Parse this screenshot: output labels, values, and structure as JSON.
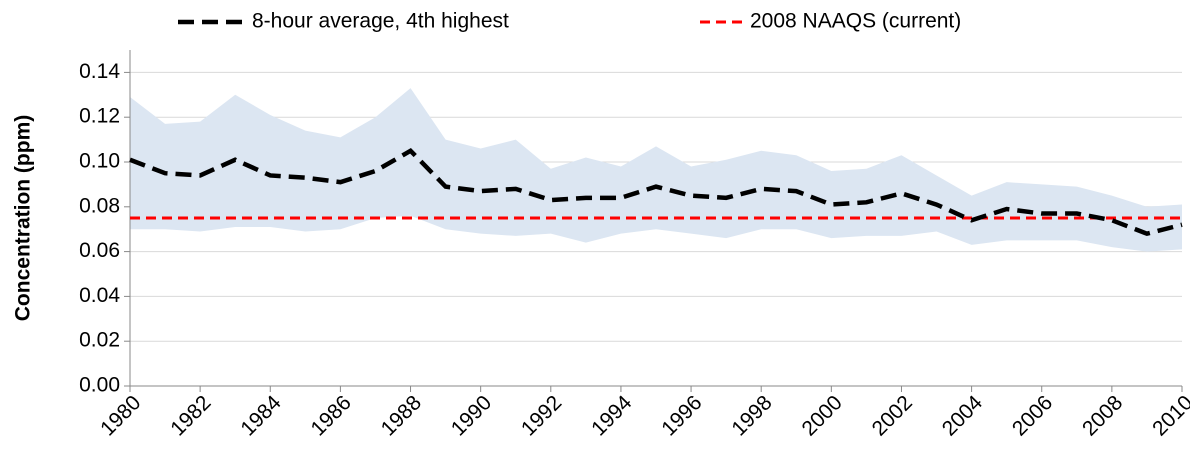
{
  "chart_data": {
    "type": "line",
    "y_label": "Concentration (ppm)",
    "x": [
      1980,
      1981,
      1982,
      1983,
      1984,
      1985,
      1986,
      1987,
      1988,
      1989,
      1990,
      1991,
      1992,
      1993,
      1994,
      1995,
      1996,
      1997,
      1998,
      1999,
      2000,
      2001,
      2002,
      2003,
      2004,
      2005,
      2006,
      2007,
      2008,
      2009,
      2010
    ],
    "series": [
      {
        "name": "8-hour average, 4th highest",
        "color": "#000000",
        "values": [
          0.101,
          0.095,
          0.094,
          0.101,
          0.094,
          0.093,
          0.091,
          0.096,
          0.105,
          0.089,
          0.087,
          0.088,
          0.083,
          0.084,
          0.084,
          0.089,
          0.085,
          0.084,
          0.088,
          0.087,
          0.081,
          0.082,
          0.086,
          0.081,
          0.074,
          0.079,
          0.077,
          0.077,
          0.074,
          0.068,
          0.072
        ]
      }
    ],
    "band": {
      "color": "#dce6f2",
      "upper": [
        0.129,
        0.117,
        0.118,
        0.13,
        0.121,
        0.114,
        0.111,
        0.12,
        0.133,
        0.11,
        0.106,
        0.11,
        0.097,
        0.102,
        0.098,
        0.107,
        0.098,
        0.101,
        0.105,
        0.103,
        0.096,
        0.097,
        0.103,
        0.094,
        0.085,
        0.091,
        0.09,
        0.089,
        0.085,
        0.08,
        0.081
      ],
      "lower": [
        0.07,
        0.07,
        0.069,
        0.071,
        0.071,
        0.069,
        0.07,
        0.075,
        0.076,
        0.07,
        0.068,
        0.067,
        0.068,
        0.064,
        0.068,
        0.07,
        0.068,
        0.066,
        0.07,
        0.07,
        0.066,
        0.067,
        0.067,
        0.069,
        0.063,
        0.065,
        0.065,
        0.065,
        0.062,
        0.06,
        0.061
      ]
    },
    "reference_lines": [
      {
        "name": "2008 NAAQS (current)",
        "value": 0.075,
        "color": "#ff0000"
      }
    ],
    "xlim": [
      1980,
      2010
    ],
    "xticks": [
      1980,
      1982,
      1984,
      1986,
      1988,
      1990,
      1992,
      1994,
      1996,
      1998,
      2000,
      2002,
      2004,
      2006,
      2008,
      2010
    ],
    "ylim": [
      0,
      0.15
    ],
    "yticks": [
      {
        "value": 0,
        "label": "0.00"
      },
      {
        "value": 0.02,
        "label": "0.02"
      },
      {
        "value": 0.04,
        "label": "0.04"
      },
      {
        "value": 0.06,
        "label": "0.06"
      },
      {
        "value": 0.08,
        "label": "0.08"
      },
      {
        "value": 0.1,
        "label": "0.10"
      },
      {
        "value": 0.12,
        "label": "0.12"
      },
      {
        "value": 0.14,
        "label": "0.14"
      }
    ],
    "grid": true
  }
}
